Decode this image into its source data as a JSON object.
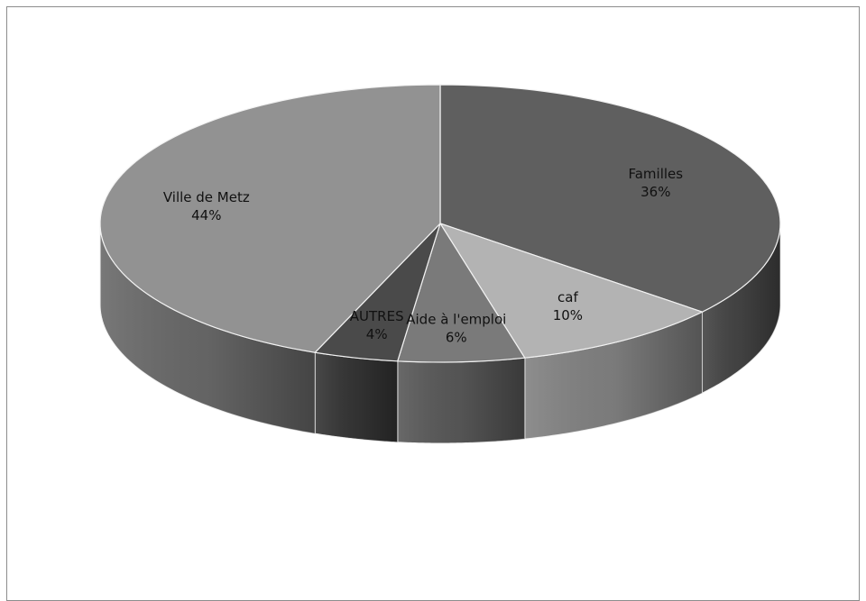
{
  "chart_data": {
    "type": "pie",
    "style": "3d",
    "slices": [
      {
        "label": "Familles",
        "value": 36,
        "value_label": "36%",
        "color": "#5f5f5f"
      },
      {
        "label": "caf",
        "value": 10,
        "value_label": "10%",
        "color": "#b3b3b3"
      },
      {
        "label": "Aide à l'emploi",
        "value": 6,
        "value_label": "6%",
        "color": "#7a7a7a"
      },
      {
        "label": "AUTRES",
        "value": 4,
        "value_label": "4%",
        "color": "#4a4a4a"
      },
      {
        "label": "Ville de Metz",
        "value": 44,
        "value_label": "44%",
        "color": "#929292"
      }
    ]
  }
}
